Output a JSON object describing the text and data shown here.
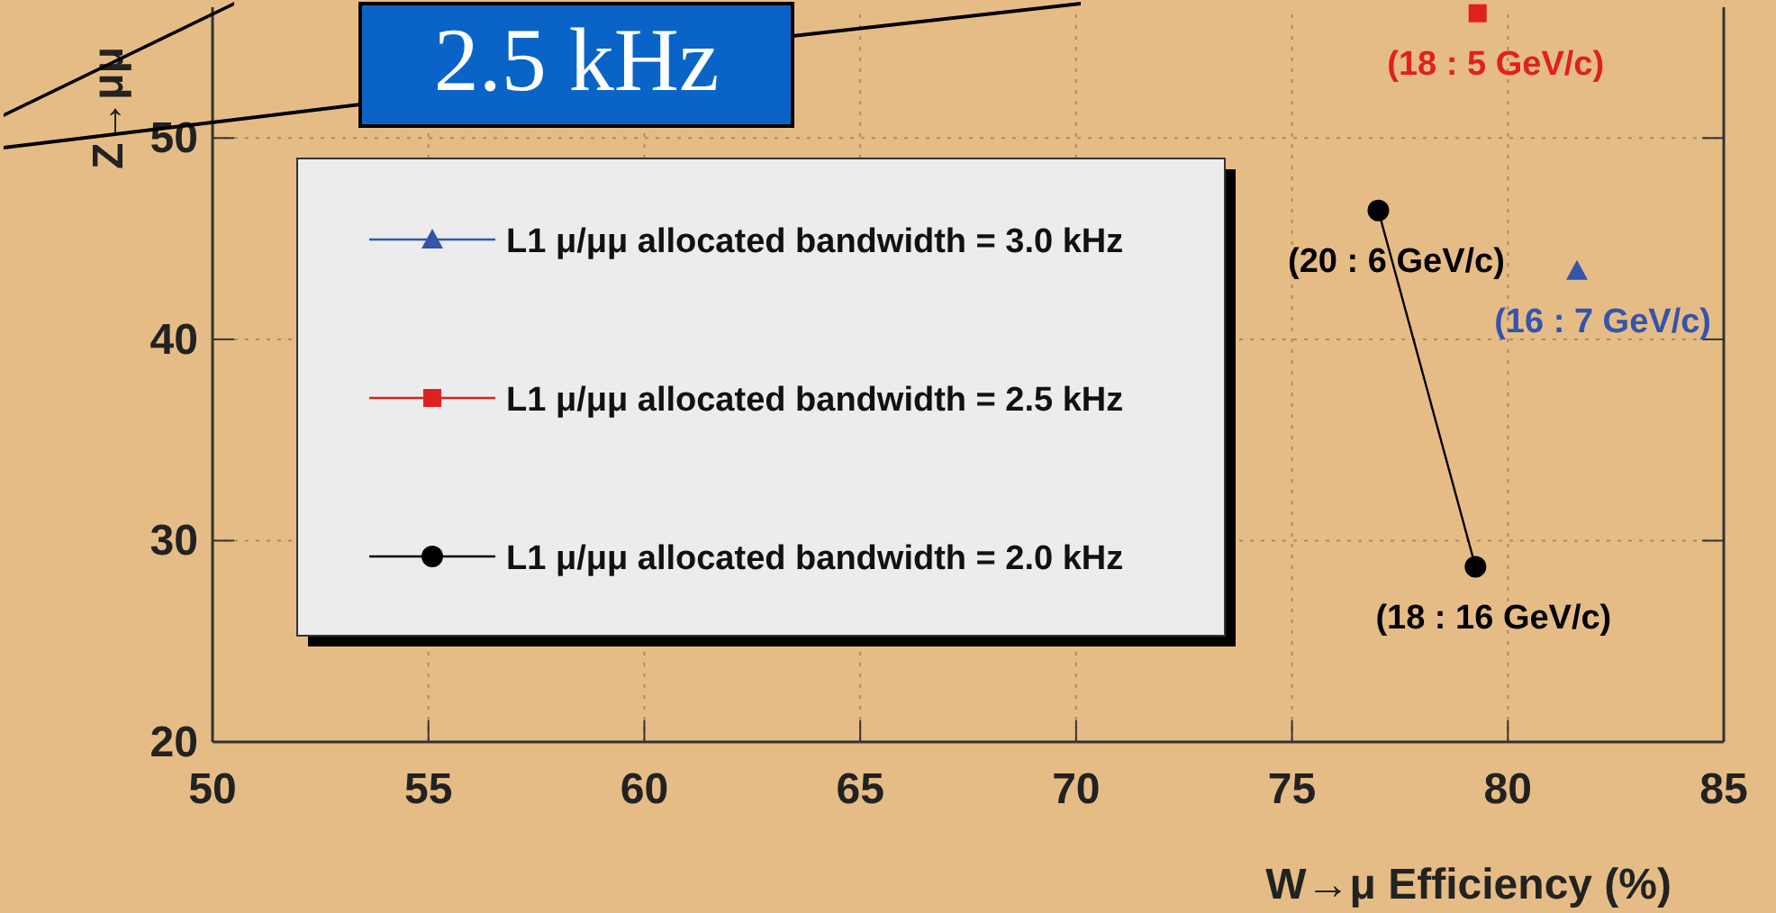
{
  "chart_data": {
    "type": "line",
    "xlabel": "W→μ Efficiency (%)",
    "ylabel": "Z→μμ",
    "xlim": [
      50,
      85
    ],
    "xticks": [
      50,
      55,
      60,
      65,
      70,
      75,
      80,
      85
    ],
    "ylim": [
      20,
      56.5
    ],
    "yticks": [
      20,
      30,
      40,
      50
    ],
    "grid": true,
    "legend": "left",
    "line_style": "solid",
    "series": [
      {
        "name": "L1 μ/μμ allocated bandwidth = 3.0 kHz",
        "color": "#3355aa",
        "marker": "triangle",
        "x": [
          81.6
        ],
        "values": [
          43.4
        ]
      },
      {
        "name": "L1 μ/μμ allocated bandwidth = 2.5 kHz",
        "color": "#e02020",
        "marker": "square",
        "x": [
          79.3
        ],
        "values": [
          56.2
        ]
      },
      {
        "name": "L1 μ/μμ allocated bandwidth = 2.0 kHz",
        "color": "#000000",
        "marker": "circle",
        "x": [
          77.0,
          79.25
        ],
        "values": [
          46.4,
          28.7
        ]
      }
    ],
    "annotations": [
      "2.5 kHz",
      {
        "text": "(18 : 5 GeV/c)",
        "x": 79.3,
        "y": 56.2
      },
      {
        "text": "(16 : 7 GeV/c)",
        "x": 81.6,
        "y": 43.4
      },
      {
        "text": "(20 : 6 GeV/c)",
        "x": 77.0,
        "y": 46.4
      },
      {
        "text": "(18 : 16 GeV/c)",
        "x": 79.25,
        "y": 28.7
      }
    ]
  }
}
